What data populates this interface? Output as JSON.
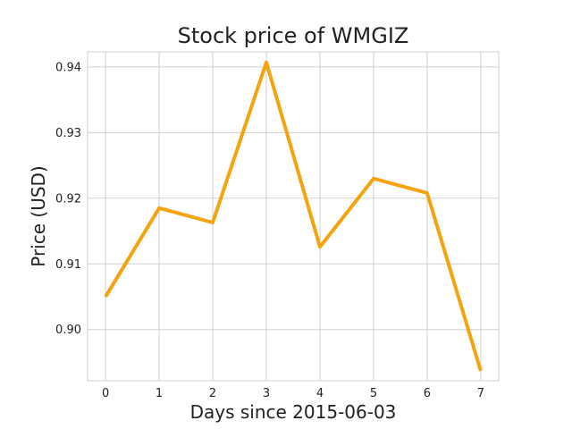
{
  "chart_data": {
    "type": "line",
    "title": "Stock price of WMGIZ",
    "xlabel": "Days since 2015-06-03",
    "ylabel": "Price (USD)",
    "x": [
      0,
      1,
      2,
      3,
      4,
      5,
      6,
      7
    ],
    "series": [
      {
        "values": [
          0.905,
          0.9185,
          0.9163,
          0.9407,
          0.9126,
          0.923,
          0.9208,
          0.8937
        ]
      }
    ],
    "x_ticks": [
      "0",
      "1",
      "2",
      "3",
      "4",
      "5",
      "6",
      "7"
    ],
    "y_ticks": [
      "0.90",
      "0.91",
      "0.92",
      "0.93",
      "0.94"
    ],
    "xlim": [
      -0.335,
      7.335
    ],
    "ylim": [
      0.8922,
      0.9423
    ],
    "grid": true,
    "line_color": "#f5a30f"
  }
}
